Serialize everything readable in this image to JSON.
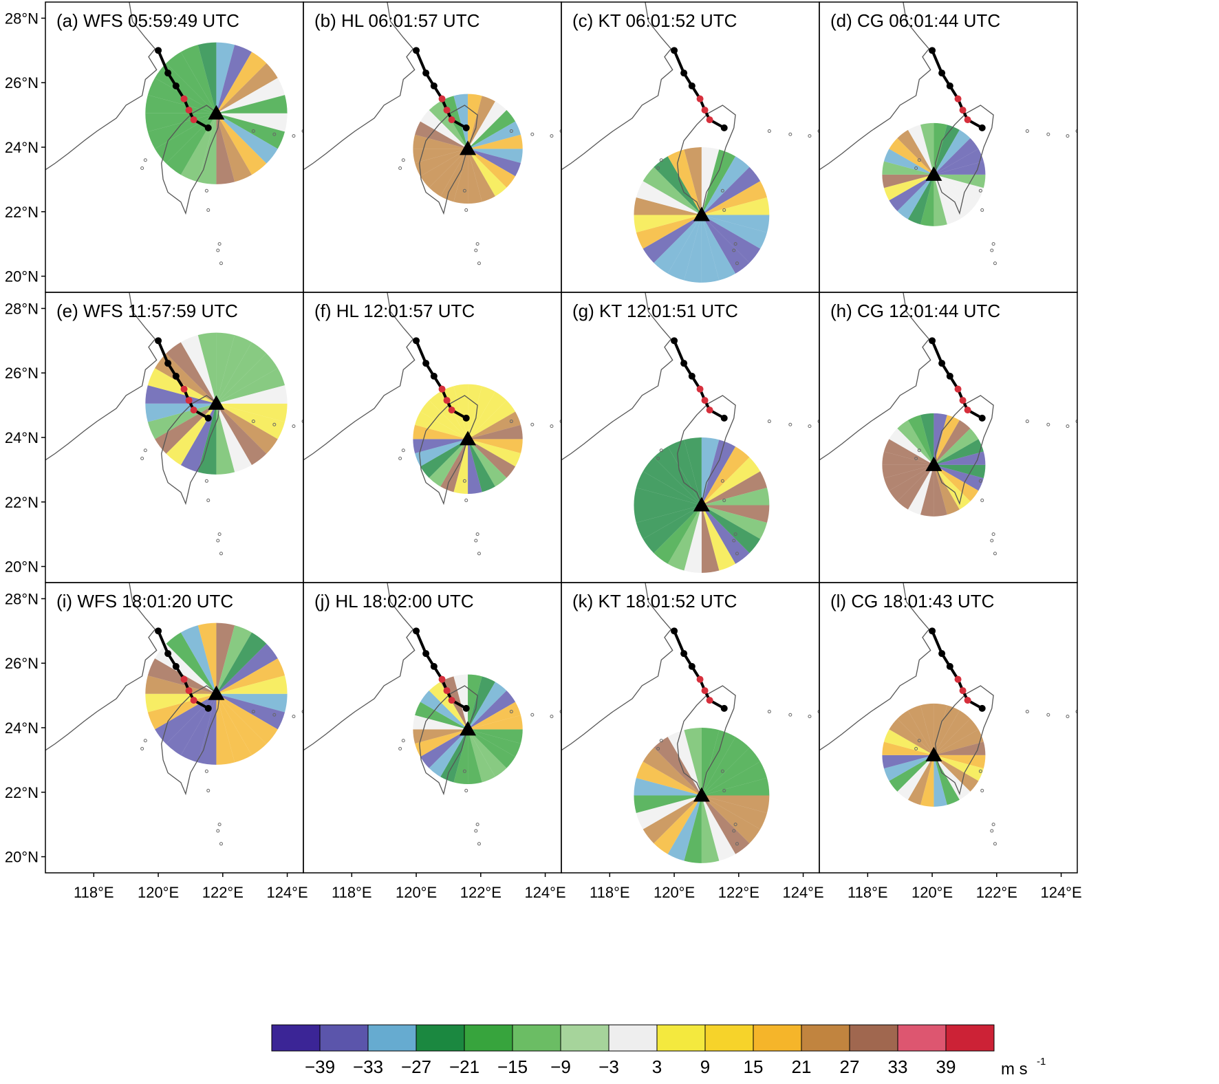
{
  "map": {
    "lon_range": [
      116.5,
      124.5
    ],
    "lat_range": [
      19.5,
      28.5
    ],
    "lat_ticks": [
      {
        "value": 28,
        "label": "28°N"
      },
      {
        "value": 26,
        "label": "26°N"
      },
      {
        "value": 24,
        "label": "24°N"
      },
      {
        "value": 22,
        "label": "22°N"
      },
      {
        "value": 20,
        "label": "20°N"
      }
    ],
    "lon_ticks": [
      {
        "value": 118,
        "label": "118°E"
      },
      {
        "value": 120,
        "label": "120°E"
      },
      {
        "value": 122,
        "label": "122°E"
      },
      {
        "value": 124,
        "label": "124°E"
      }
    ]
  },
  "typhoon_track": [
    {
      "lon": 120.0,
      "lat": 27.0,
      "color": "#000000"
    },
    {
      "lon": 120.3,
      "lat": 26.3,
      "color": "#000000"
    },
    {
      "lon": 120.55,
      "lat": 25.9,
      "color": "#000000"
    },
    {
      "lon": 120.8,
      "lat": 25.5,
      "color": "#d62f3c"
    },
    {
      "lon": 120.95,
      "lat": 25.15,
      "color": "#d62f3c"
    },
    {
      "lon": 121.1,
      "lat": 24.85,
      "color": "#d62f3c"
    },
    {
      "lon": 121.55,
      "lat": 24.6,
      "color": "#000000"
    }
  ],
  "radars": {
    "WFS": {
      "lon": 121.8,
      "lat": 25.05,
      "range_deg": 2.2
    },
    "HL": {
      "lon": 121.6,
      "lat": 23.95,
      "range_deg": 1.7
    },
    "KT": {
      "lon": 120.85,
      "lat": 21.9,
      "range_deg": 2.1
    },
    "CG": {
      "lon": 120.05,
      "lat": 23.15,
      "range_deg": 1.6
    }
  },
  "panels": [
    {
      "label": "(a) WFS 05:59:49 UTC",
      "radar": "WFS",
      "row": 0,
      "col": 0
    },
    {
      "label": "(b) HL 06:01:57 UTC",
      "radar": "HL",
      "row": 0,
      "col": 1
    },
    {
      "label": "(c) KT 06:01:52 UTC",
      "radar": "KT",
      "row": 0,
      "col": 2
    },
    {
      "label": "(d) CG 06:01:44 UTC",
      "radar": "CG",
      "row": 0,
      "col": 3
    },
    {
      "label": "(e) WFS 11:57:59 UTC",
      "radar": "WFS",
      "row": 1,
      "col": 0
    },
    {
      "label": "(f) HL 12:01:57 UTC",
      "radar": "HL",
      "row": 1,
      "col": 1
    },
    {
      "label": "(g) KT 12:01:51 UTC",
      "radar": "KT",
      "row": 1,
      "col": 2
    },
    {
      "label": "(h) CG 12:01:44 UTC",
      "radar": "CG",
      "row": 1,
      "col": 3
    },
    {
      "label": "(i) WFS 18:01:20 UTC",
      "radar": "WFS",
      "row": 2,
      "col": 0
    },
    {
      "label": "(j) HL 18:02:00 UTC",
      "radar": "HL",
      "row": 2,
      "col": 1
    },
    {
      "label": "(k) KT 18:01:52 UTC",
      "radar": "KT",
      "row": 2,
      "col": 2
    },
    {
      "label": "(l) CG 18:01:43 UTC",
      "radar": "CG",
      "row": 2,
      "col": 3
    }
  ],
  "colorbar": {
    "colors": [
      "#3b2596",
      "#5b55ab",
      "#66abd0",
      "#1b8840",
      "#37a43d",
      "#6bbd64",
      "#a6d49b",
      "#eeeeee",
      "#f4e93e",
      "#f6d32a",
      "#f5b52a",
      "#c1843f",
      "#a0674f",
      "#dd5670",
      "#cc2236"
    ],
    "tick_labels": [
      "−39",
      "−33",
      "−27",
      "−21",
      "−15",
      "−9",
      "−3",
      "3",
      "9",
      "15",
      "21",
      "27",
      "33",
      "39"
    ],
    "unit_main": "m s",
    "unit_exp": "-1"
  }
}
